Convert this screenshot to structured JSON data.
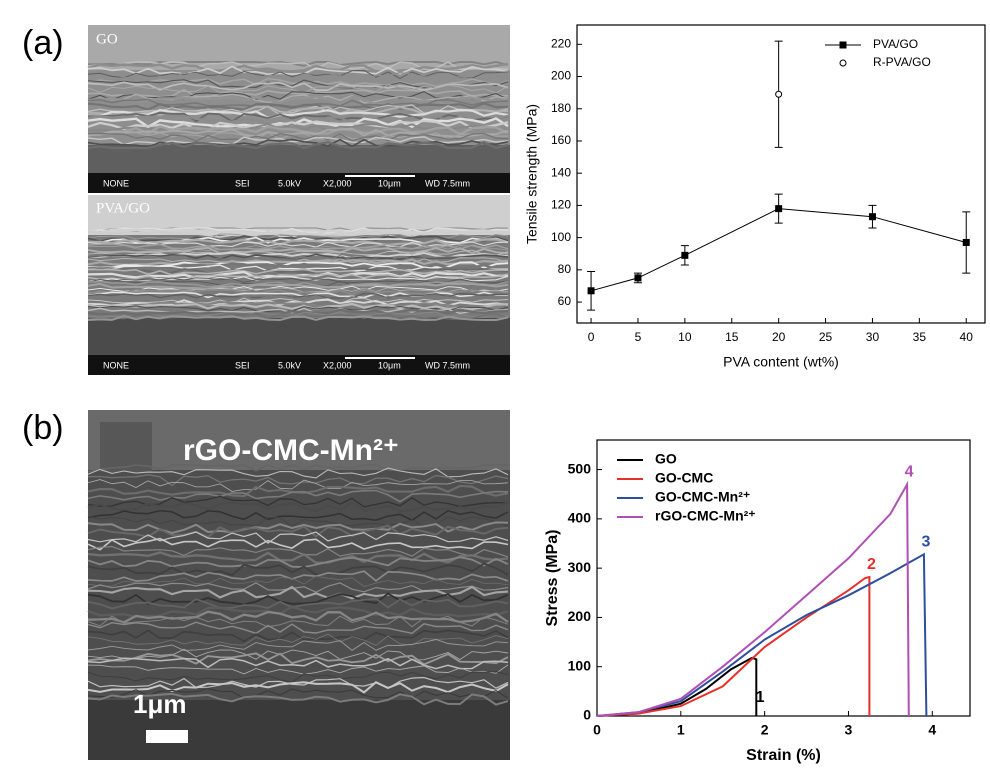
{
  "panels": {
    "a": "(a)",
    "b": "(b)"
  },
  "images": [
    {
      "caption": "GO",
      "bar": [
        "NONE",
        "SEI",
        "5.0kV",
        "X2,000",
        "10μm",
        "WD 7.5mm"
      ]
    },
    {
      "caption": "PVA/GO",
      "bar": [
        "NONE",
        "SEI",
        "5.0kV",
        "X2,000",
        "10μm",
        "WD 7.5mm"
      ]
    },
    {
      "caption": "rGO-CMC-Mn²⁺",
      "scale": "1μm"
    }
  ],
  "chart_data": [
    {
      "type": "line",
      "x_label": "PVA content (wt%)",
      "y_label": "Tensile strength (MPa)",
      "xlim": [
        -1.5,
        42
      ],
      "ylim": [
        47,
        232
      ],
      "xticks": [
        0,
        5,
        10,
        15,
        20,
        25,
        30,
        35,
        40
      ],
      "yticks": [
        60,
        80,
        100,
        120,
        140,
        160,
        180,
        200,
        220
      ],
      "legend": "upper right",
      "series": [
        {
          "name": "PVA/GO",
          "color": "#000000",
          "marker": "square",
          "line": true,
          "x": [
            0,
            5,
            10,
            20,
            30,
            40
          ],
          "values": [
            67,
            75,
            89,
            118,
            113,
            97
          ],
          "errors": [
            12,
            3,
            6,
            9,
            7,
            19
          ]
        },
        {
          "name": "R-PVA/GO",
          "color": "#000000",
          "marker": "open-circle",
          "line": false,
          "x": [
            20
          ],
          "values": [
            189
          ],
          "errors": [
            33
          ]
        }
      ]
    },
    {
      "type": "line",
      "x_label": "Strain (%)",
      "y_label": "Stress (MPa)",
      "xlim": [
        0,
        4.45
      ],
      "ylim": [
        0,
        560
      ],
      "xticks": [
        0,
        1,
        2,
        3,
        4
      ],
      "yticks": [
        0,
        100,
        200,
        300,
        400,
        500
      ],
      "legend": "upper left",
      "series": [
        {
          "name": "GO",
          "color": "#000000",
          "label": "1",
          "x": [
            0,
            0.5,
            1,
            1.3,
            1.6,
            1.85,
            1.9,
            1.9
          ],
          "values": [
            0,
            5,
            25,
            55,
            95,
            118,
            115,
            0
          ]
        },
        {
          "name": "GO-CMC",
          "color": "#e8302a",
          "label": "2",
          "x": [
            0,
            0.5,
            1,
            1.5,
            2,
            2.5,
            3,
            3.2,
            3.25,
            3.25
          ],
          "values": [
            0,
            5,
            20,
            60,
            140,
            200,
            255,
            280,
            282,
            0
          ]
        },
        {
          "name": "GO-CMC-Mn²⁺",
          "color": "#2e4f9e",
          "label": "3",
          "x": [
            0,
            0.5,
            1,
            1.5,
            2,
            2.5,
            3,
            3.5,
            3.9,
            3.93
          ],
          "values": [
            0,
            8,
            30,
            90,
            155,
            205,
            245,
            290,
            328,
            0
          ]
        },
        {
          "name": "rGO-CMC-Mn²⁺",
          "color": "#b14fb5",
          "label": "4",
          "x": [
            0,
            0.5,
            1,
            1.5,
            2,
            2.5,
            3,
            3.5,
            3.7,
            3.72
          ],
          "values": [
            0,
            8,
            35,
            100,
            170,
            245,
            320,
            410,
            470,
            0
          ]
        }
      ]
    }
  ]
}
